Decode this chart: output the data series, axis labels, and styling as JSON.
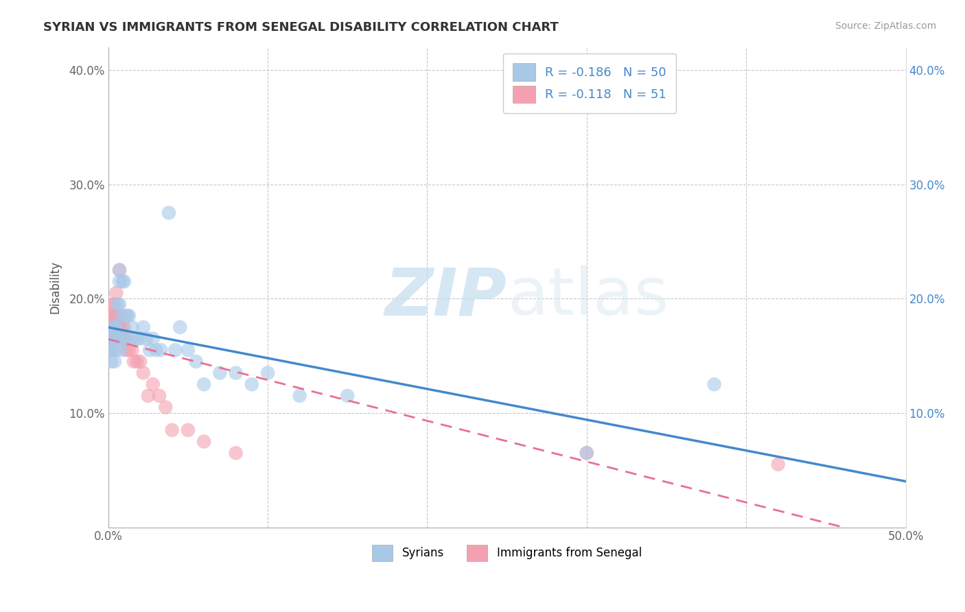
{
  "title": "SYRIAN VS IMMIGRANTS FROM SENEGAL DISABILITY CORRELATION CHART",
  "source": "Source: ZipAtlas.com",
  "ylabel": "Disability",
  "watermark_zip": "ZIP",
  "watermark_atlas": "atlas",
  "xlim": [
    0.0,
    0.5
  ],
  "ylim": [
    0.0,
    0.42
  ],
  "xticks": [
    0.0,
    0.1,
    0.2,
    0.3,
    0.4,
    0.5
  ],
  "yticks": [
    0.0,
    0.1,
    0.2,
    0.3,
    0.4
  ],
  "ytick_labels_left": [
    "",
    "10.0%",
    "20.0%",
    "30.0%",
    "40.0%"
  ],
  "ytick_labels_right": [
    "",
    "10.0%",
    "20.0%",
    "30.0%",
    "40.0%"
  ],
  "xtick_labels": [
    "0.0%",
    "",
    "",
    "",
    "",
    "50.0%"
  ],
  "grid_color": "#c8c8c8",
  "background_color": "#ffffff",
  "syrian_color": "#a8c8e8",
  "senegal_color": "#f4a0b0",
  "syrian_line_color": "#4488cc",
  "senegal_line_color": "#e87090",
  "legend_label_syrian": "Syrians",
  "legend_label_senegal": "Immigrants from Senegal",
  "syrian_x": [
    0.001,
    0.002,
    0.002,
    0.003,
    0.003,
    0.003,
    0.004,
    0.004,
    0.004,
    0.005,
    0.005,
    0.005,
    0.006,
    0.006,
    0.007,
    0.007,
    0.007,
    0.008,
    0.008,
    0.009,
    0.009,
    0.01,
    0.01,
    0.011,
    0.012,
    0.013,
    0.015,
    0.016,
    0.018,
    0.02,
    0.022,
    0.024,
    0.026,
    0.028,
    0.03,
    0.033,
    0.038,
    0.042,
    0.045,
    0.05,
    0.055,
    0.06,
    0.07,
    0.08,
    0.09,
    0.1,
    0.12,
    0.15,
    0.3,
    0.38
  ],
  "syrian_y": [
    0.155,
    0.165,
    0.145,
    0.155,
    0.175,
    0.165,
    0.145,
    0.175,
    0.165,
    0.155,
    0.175,
    0.165,
    0.195,
    0.165,
    0.225,
    0.215,
    0.195,
    0.155,
    0.185,
    0.165,
    0.215,
    0.165,
    0.215,
    0.185,
    0.185,
    0.185,
    0.175,
    0.165,
    0.165,
    0.165,
    0.175,
    0.165,
    0.155,
    0.165,
    0.155,
    0.155,
    0.275,
    0.155,
    0.175,
    0.155,
    0.145,
    0.125,
    0.135,
    0.135,
    0.125,
    0.135,
    0.115,
    0.115,
    0.065,
    0.125
  ],
  "senegal_x": [
    0.001,
    0.001,
    0.001,
    0.002,
    0.002,
    0.002,
    0.002,
    0.003,
    0.003,
    0.003,
    0.003,
    0.003,
    0.004,
    0.004,
    0.004,
    0.004,
    0.004,
    0.005,
    0.005,
    0.005,
    0.005,
    0.006,
    0.006,
    0.006,
    0.007,
    0.007,
    0.007,
    0.008,
    0.008,
    0.009,
    0.009,
    0.01,
    0.01,
    0.011,
    0.012,
    0.013,
    0.015,
    0.016,
    0.018,
    0.02,
    0.022,
    0.025,
    0.028,
    0.032,
    0.036,
    0.04,
    0.05,
    0.06,
    0.08,
    0.3,
    0.42
  ],
  "senegal_y": [
    0.175,
    0.155,
    0.165,
    0.175,
    0.185,
    0.165,
    0.175,
    0.175,
    0.195,
    0.165,
    0.185,
    0.175,
    0.175,
    0.165,
    0.195,
    0.185,
    0.165,
    0.205,
    0.185,
    0.175,
    0.165,
    0.185,
    0.175,
    0.165,
    0.175,
    0.165,
    0.225,
    0.165,
    0.175,
    0.175,
    0.165,
    0.165,
    0.175,
    0.155,
    0.165,
    0.155,
    0.155,
    0.145,
    0.145,
    0.145,
    0.135,
    0.115,
    0.125,
    0.115,
    0.105,
    0.085,
    0.085,
    0.075,
    0.065,
    0.065,
    0.055
  ]
}
